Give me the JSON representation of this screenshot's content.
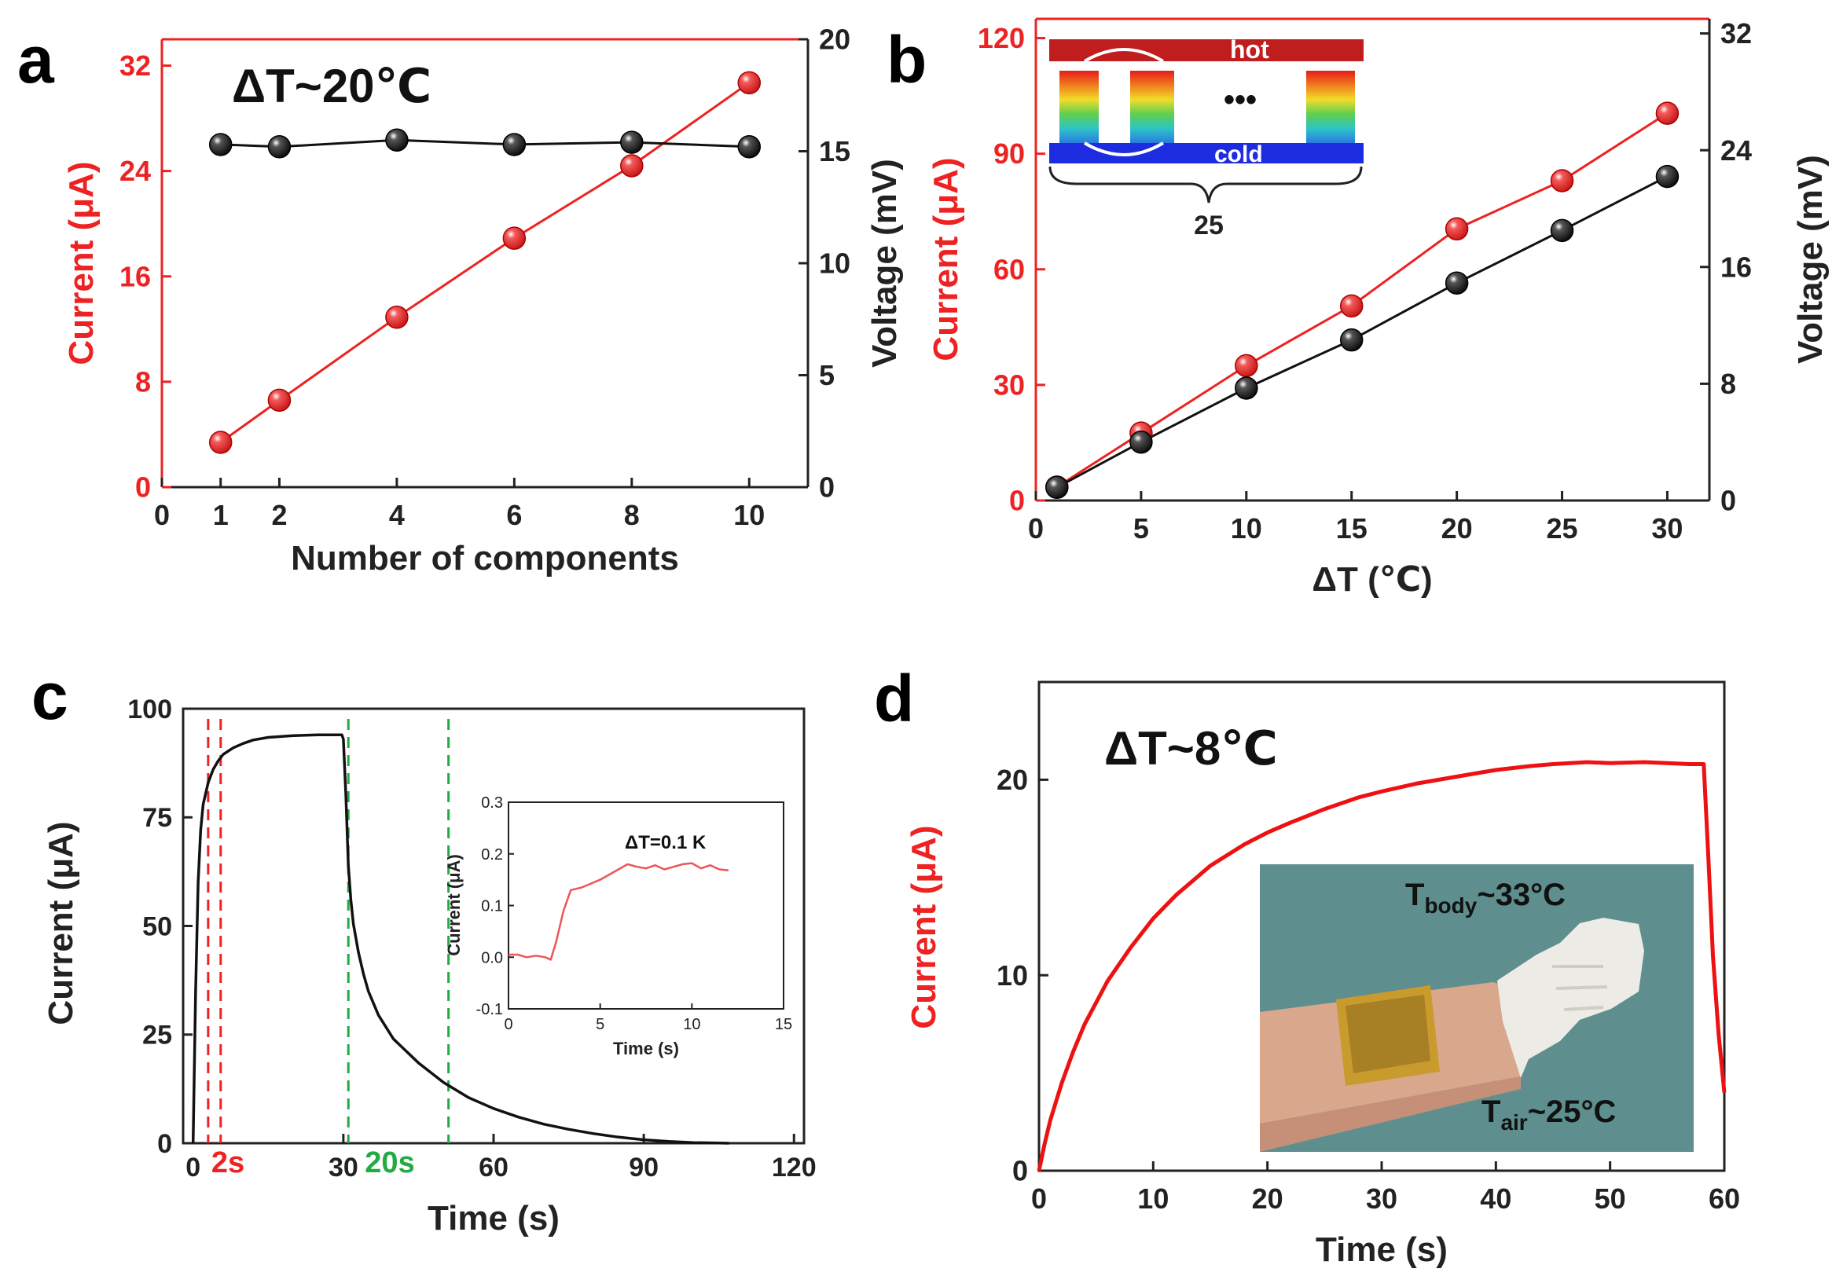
{
  "chart_data": [
    {
      "panel": "a",
      "type": "line",
      "panel_label": "a",
      "annotation": "ΔT~20℃",
      "xlabel": "Number of components",
      "xlim": [
        0,
        11
      ],
      "xticks": [
        0,
        1,
        2,
        4,
        6,
        8,
        10
      ],
      "ylabel_left": "Current (μA)",
      "ylim_left": [
        0,
        34
      ],
      "yticks_left": [
        0,
        8,
        16,
        24,
        32
      ],
      "ylabel_right": "Voltage (mV)",
      "ylim_right": [
        0,
        20
      ],
      "yticks_right": [
        0,
        5,
        10,
        15,
        20
      ],
      "series": [
        {
          "name": "Current",
          "axis": "left",
          "color": "#ee2222",
          "x": [
            1,
            2,
            4,
            6,
            8,
            10
          ],
          "values": [
            3.4,
            6.6,
            12.9,
            18.9,
            24.4,
            30.7
          ]
        },
        {
          "name": "Voltage",
          "axis": "right",
          "color": "#111111",
          "x": [
            1,
            2,
            4,
            6,
            8,
            10
          ],
          "values": [
            15.3,
            15.2,
            15.5,
            15.3,
            15.4,
            15.2
          ]
        }
      ]
    },
    {
      "panel": "b",
      "type": "line",
      "panel_label": "b",
      "xlabel": "ΔT (℃)",
      "xlim": [
        0,
        32
      ],
      "xticks": [
        0,
        5,
        10,
        15,
        20,
        25,
        30
      ],
      "ylabel_left": "Current (μA)",
      "ylim_left": [
        0,
        125
      ],
      "yticks_left": [
        0,
        30,
        60,
        90,
        120
      ],
      "ylabel_right": "Voltage (mV)",
      "ylim_right": [
        0,
        33
      ],
      "yticks_right": [
        0,
        8,
        16,
        24,
        32
      ],
      "series": [
        {
          "name": "Current",
          "axis": "left",
          "color": "#ee2222",
          "x": [
            1,
            5,
            10,
            15,
            20,
            25,
            30
          ],
          "values": [
            3.5,
            17.5,
            35,
            50.5,
            70.5,
            83,
            100.5
          ]
        },
        {
          "name": "Voltage",
          "axis": "right",
          "color": "#111111",
          "x": [
            1,
            5,
            10,
            15,
            20,
            25,
            30
          ],
          "values": [
            0.9,
            4,
            7.7,
            11,
            14.9,
            18.5,
            22.2
          ]
        }
      ],
      "inset_schematic": {
        "hot_label": "hot",
        "cold_label": "cold",
        "ellipsis": "•••",
        "count_label": "25"
      }
    },
    {
      "panel": "c",
      "type": "line",
      "panel_label": "c",
      "xlabel": "Time (s)",
      "xlim": [
        -2,
        122
      ],
      "xticks": [
        0,
        30,
        60,
        90,
        120
      ],
      "ylabel": "Current (μA)",
      "ylim": [
        0,
        100
      ],
      "yticks": [
        0,
        25,
        50,
        75,
        100
      ],
      "series": [
        {
          "name": "Current",
          "color": "#111111",
          "x": [
            0,
            0.5,
            1,
            1.5,
            2,
            3,
            4,
            5,
            6,
            8,
            10,
            12,
            15,
            20,
            25,
            29.7,
            30,
            30.5,
            31,
            31.5,
            32,
            33,
            34,
            35,
            37,
            40,
            45,
            50,
            55,
            60,
            65,
            70,
            75,
            80,
            85,
            90,
            95,
            100,
            107
          ],
          "values": [
            0,
            35,
            60,
            72,
            78,
            83,
            86,
            88,
            89.5,
            91,
            92,
            92.8,
            93.4,
            93.8,
            94,
            94,
            93,
            80,
            64,
            56,
            50.5,
            44,
            39,
            35,
            29.5,
            24,
            18.5,
            14,
            10.5,
            8,
            6,
            4.4,
            3.2,
            2.2,
            1.4,
            0.8,
            0.4,
            0.15,
            0
          ]
        }
      ],
      "markers": [
        {
          "x": 3,
          "color": "#ee2222"
        },
        {
          "x": 5.5,
          "color": "#ee2222"
        },
        {
          "x": 31,
          "color": "#22aa44"
        },
        {
          "x": 51,
          "color": "#22aa44"
        }
      ],
      "interval_labels": [
        {
          "text": "2s",
          "color": "#ee2222"
        },
        {
          "text": "20s",
          "color": "#22aa44"
        }
      ],
      "inset": {
        "type": "line",
        "annotation": "ΔT=0.1 K",
        "xlabel": "Time (s)",
        "ylabel": "Current (μA)",
        "xlim": [
          0,
          15
        ],
        "xticks": [
          0,
          5,
          10,
          15
        ],
        "ylim": [
          -0.1,
          0.3
        ],
        "yticks": [
          -0.1,
          0.0,
          0.1,
          0.2,
          0.3
        ],
        "ytick_labels": [
          "-0.1",
          "0.0",
          "0.1",
          "0.2",
          "0.3"
        ],
        "series": [
          {
            "name": "Current",
            "color": "#ee5555",
            "x": [
              0,
              0.5,
              1,
              1.5,
              2,
              2.3,
              2.6,
              3,
              3.4,
              4,
              5,
              6,
              6.5,
              7,
              7.5,
              8,
              8.5,
              9,
              9.5,
              10,
              10.5,
              11,
              11.5,
              12
            ],
            "values": [
              0.005,
              0.005,
              0.0,
              0.003,
              0.0,
              -0.005,
              0.03,
              0.09,
              0.13,
              0.135,
              0.15,
              0.17,
              0.18,
              0.175,
              0.172,
              0.178,
              0.17,
              0.175,
              0.18,
              0.182,
              0.172,
              0.178,
              0.17,
              0.168
            ]
          }
        ]
      }
    },
    {
      "panel": "d",
      "type": "line",
      "panel_label": "d",
      "annotation": "ΔT~8℃",
      "xlabel": "Time (s)",
      "xlim": [
        0,
        60
      ],
      "xticks": [
        0,
        10,
        20,
        30,
        40,
        50,
        60
      ],
      "ylabel": "Current (μA)",
      "ylim": [
        0,
        25
      ],
      "yticks": [
        0,
        10,
        20
      ],
      "series": [
        {
          "name": "Current",
          "color": "#ee1111",
          "x": [
            0,
            0.5,
            1,
            2,
            3,
            4,
            5,
            6,
            8,
            10,
            12,
            15,
            18,
            20,
            22,
            25,
            28,
            30,
            33,
            35,
            38,
            40,
            43,
            45,
            48,
            50,
            53,
            55,
            57,
            58.2,
            58.6,
            59,
            59.5,
            60
          ],
          "values": [
            0,
            1.4,
            2.6,
            4.5,
            6.1,
            7.5,
            8.6,
            9.7,
            11.4,
            12.9,
            14.1,
            15.6,
            16.7,
            17.3,
            17.8,
            18.5,
            19.1,
            19.4,
            19.8,
            20.0,
            20.3,
            20.5,
            20.7,
            20.8,
            20.9,
            20.85,
            20.9,
            20.85,
            20.8,
            20.8,
            16,
            11,
            7,
            4
          ]
        }
      ],
      "inset_photo": {
        "label_body": "T",
        "label_body_sub": "body",
        "label_body_value": "~33°C",
        "label_air": "T",
        "label_air_sub": "air",
        "label_air_value": "~25°C"
      }
    }
  ]
}
